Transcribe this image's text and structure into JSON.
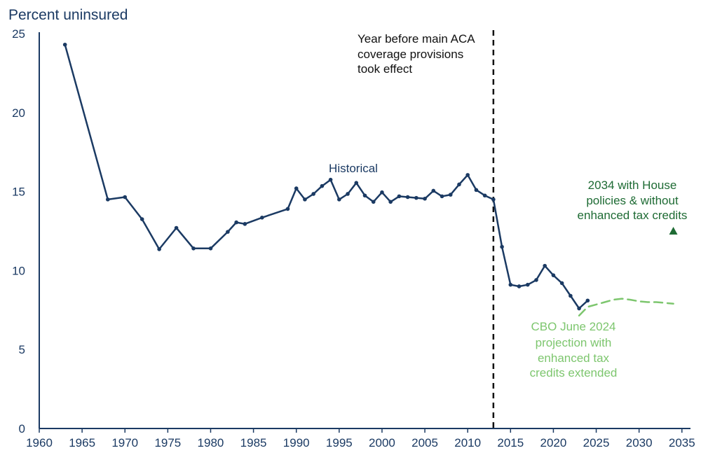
{
  "chart_data": {
    "type": "line",
    "ylabel": "Percent uninsured",
    "xlim": [
      1960,
      2036
    ],
    "ylim": [
      0,
      25
    ],
    "xticks": [
      "1960",
      "1965",
      "1970",
      "1975",
      "1980",
      "1985",
      "1990",
      "1995",
      "2000",
      "2005",
      "2010",
      "2015",
      "2020",
      "2025",
      "2030",
      "2035"
    ],
    "yticks": [
      "0",
      "5",
      "10",
      "15",
      "20",
      "25"
    ],
    "series": [
      {
        "name": "Historical",
        "color": "#1b3a63",
        "x": [
          1963,
          1968,
          1970,
          1972,
          1974,
          1976,
          1978,
          1980,
          1982,
          1983,
          1984,
          1986,
          1989,
          1990,
          1991,
          1992,
          1993,
          1994,
          1995,
          1996,
          1997,
          1998,
          1999,
          2000,
          2001,
          2002,
          2003,
          2004,
          2005,
          2006,
          2007,
          2008,
          2009,
          2010,
          2011,
          2012,
          2013,
          2014,
          2015,
          2016,
          2017,
          2018,
          2019,
          2020,
          2021,
          2022,
          2023,
          2024
        ],
        "y": [
          24.3,
          14.5,
          14.65,
          13.25,
          11.35,
          12.7,
          11.4,
          11.4,
          12.45,
          13.05,
          12.95,
          13.35,
          13.9,
          15.2,
          14.5,
          14.85,
          15.35,
          15.75,
          14.5,
          14.85,
          15.55,
          14.75,
          14.35,
          14.95,
          14.35,
          14.7,
          14.65,
          14.6,
          14.55,
          15.05,
          14.7,
          14.8,
          15.45,
          16.05,
          15.1,
          14.75,
          14.5,
          11.5,
          9.1,
          9.0,
          9.1,
          9.4,
          10.3,
          9.7,
          9.2,
          8.4,
          7.6,
          8.1
        ]
      },
      {
        "name": "CBO June 2024 projection with enhanced tax credits extended",
        "color": "#7dc66e",
        "x": [
          2023,
          2024,
          2025,
          2026,
          2027,
          2028,
          2029,
          2030,
          2031,
          2032,
          2033,
          2034
        ],
        "y": [
          7.15,
          7.7,
          7.85,
          8.0,
          8.15,
          8.22,
          8.15,
          8.05,
          8.0,
          8.0,
          7.95,
          7.9
        ]
      },
      {
        "name": "2034 with House policies & without enhanced tax credits",
        "color": "#1e6b34",
        "x": [
          2034
        ],
        "y": [
          12.5
        ]
      }
    ],
    "reference_line": {
      "x": 2013,
      "label": "Year before main ACA coverage provisions took effect"
    },
    "annotations": {
      "historical": "Historical",
      "aca_line1": "Year before main ACA",
      "aca_line2": "coverage provisions",
      "aca_line3": "took effect",
      "cbo_line1": "CBO June 2024",
      "cbo_line2": "projection with",
      "cbo_line3": "enhanced tax",
      "cbo_line4": "credits extended",
      "house_line1": "2034 with House",
      "house_line2": "policies & without",
      "house_line3": "enhanced tax credits"
    },
    "colors": {
      "axis": "#1b3a63",
      "historical": "#1b3a63",
      "projection": "#7dc66e",
      "house": "#1e6b34",
      "reference": "#111111"
    }
  }
}
